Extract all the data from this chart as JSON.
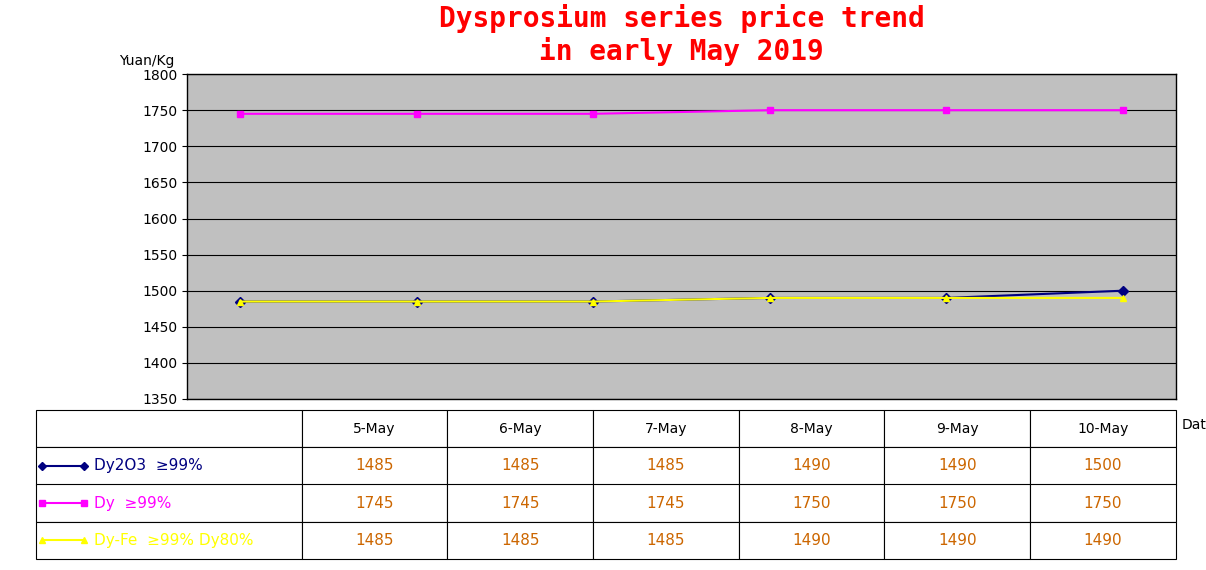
{
  "title_line1": "Dysprosium series price trend",
  "title_line2": "in early May 2019",
  "title_color": "#FF0000",
  "ylabel": "Yuan/Kg",
  "xlabel": "Date",
  "dates": [
    "5-May",
    "6-May",
    "7-May",
    "8-May",
    "9-May",
    "10-May"
  ],
  "series": [
    {
      "name": "Dy2O3  ≥99%",
      "values": [
        1485,
        1485,
        1485,
        1490,
        1490,
        1500
      ],
      "color": "#000080",
      "marker": "D",
      "markersize": 5,
      "linewidth": 1.5
    },
    {
      "name": "Dy  ≥99%",
      "values": [
        1745,
        1745,
        1745,
        1750,
        1750,
        1750
      ],
      "color": "#FF00FF",
      "marker": "s",
      "markersize": 5,
      "linewidth": 1.5
    },
    {
      "name": "Dy-Fe  ≥99% Dy80%",
      "values": [
        1485,
        1485,
        1485,
        1490,
        1490,
        1490
      ],
      "color": "#FFFF00",
      "marker": "^",
      "markersize": 5,
      "linewidth": 1.5
    }
  ],
  "ylim": [
    1350,
    1800
  ],
  "yticks": [
    1350,
    1400,
    1450,
    1500,
    1550,
    1600,
    1650,
    1700,
    1750,
    1800
  ],
  "plot_bg_color": "#C0C0C0",
  "fig_bg_color": "#FFFFFF",
  "grid_color": "#000000",
  "title_fontsize": 20,
  "axis_label_fontsize": 10,
  "tick_fontsize": 10,
  "table_fontsize": 11,
  "table_value_color": "#CC6600"
}
